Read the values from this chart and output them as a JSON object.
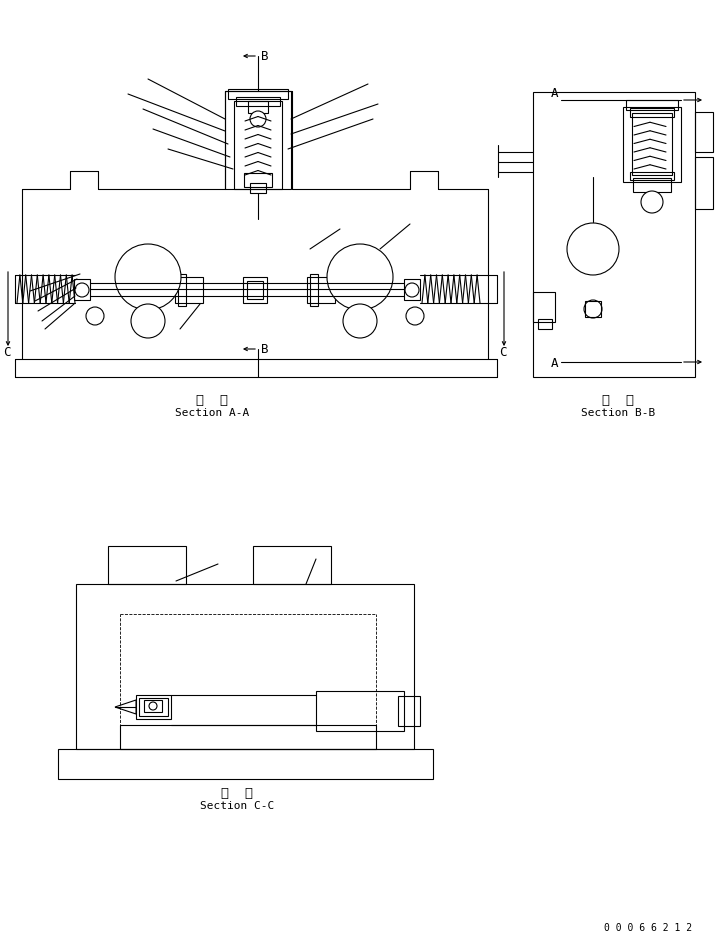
{
  "bg_color": "#ffffff",
  "lc": "#000000",
  "lw": 0.8,
  "section_aa": [
    "断  面",
    "Section A-A"
  ],
  "section_bb": [
    "断  面",
    "Section B-B"
  ],
  "section_cc": [
    "断  面",
    "Section C-C"
  ],
  "serial": "0 0 0 6 6 2 1 2",
  "label_B": "B",
  "label_A": "A",
  "label_C": "C"
}
